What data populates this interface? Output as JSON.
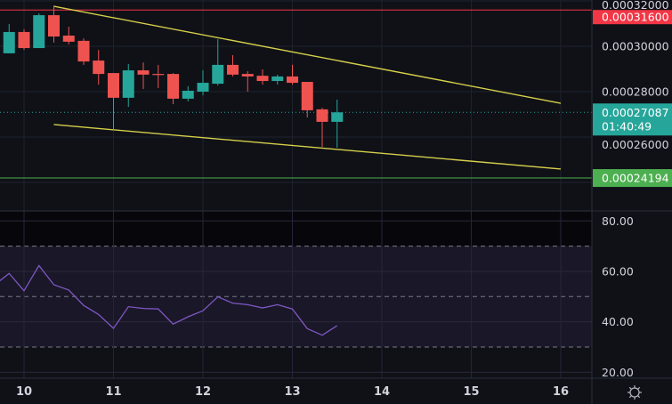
{
  "chart_data": [
    {
      "type": "candlestick",
      "title": "",
      "price_axis": {
        "ticks": [
          "0.00032000",
          "0.00030000",
          "0.00028000",
          "0.00026000"
        ],
        "ylim": [
          0.00023,
          0.000322
        ]
      },
      "time_axis": {
        "ticks": [
          "10",
          "11",
          "12",
          "13",
          "14",
          "15",
          "16"
        ]
      },
      "grid": true,
      "colors": {
        "up": "#26a69a",
        "down": "#ef5350",
        "trendline": "#d6cf4a",
        "resistance": "#f23645",
        "support": "#4caf50",
        "background": "#0f1117"
      },
      "candles": [
        {
          "t": "9 20:00",
          "o": 0.0002969,
          "h": 0.0003098,
          "l": 0.0002969,
          "c": 0.0003063
        },
        {
          "t": "10 00:00",
          "o": 0.0003063,
          "h": 0.0003075,
          "l": 0.0002984,
          "c": 0.0002992
        },
        {
          "t": "10 04:00",
          "o": 0.0002992,
          "h": 0.0003145,
          "l": 0.0002992,
          "c": 0.0003137
        },
        {
          "t": "10 08:00",
          "o": 0.0003137,
          "h": 0.000318,
          "l": 0.0003016,
          "c": 0.0003043
        },
        {
          "t": "10 12:00",
          "o": 0.0003047,
          "h": 0.0003086,
          "l": 0.0003008,
          "c": 0.000302
        },
        {
          "t": "10 16:00",
          "o": 0.0003024,
          "h": 0.0003035,
          "l": 0.0002918,
          "c": 0.0002933
        },
        {
          "t": "10 20:00",
          "o": 0.0002937,
          "h": 0.0002984,
          "l": 0.0002831,
          "c": 0.0002878
        },
        {
          "t": "11 00:00",
          "o": 0.0002882,
          "h": 0.0002882,
          "l": 0.0002631,
          "c": 0.0002773
        },
        {
          "t": "11 04:00",
          "o": 0.0002773,
          "h": 0.0002922,
          "l": 0.0002733,
          "c": 0.0002894
        },
        {
          "t": "11 08:00",
          "o": 0.0002894,
          "h": 0.0002929,
          "l": 0.0002812,
          "c": 0.0002875
        },
        {
          "t": "11 12:00",
          "o": 0.0002878,
          "h": 0.0002918,
          "l": 0.0002816,
          "c": 0.0002875
        },
        {
          "t": "11 16:00",
          "o": 0.0002878,
          "h": 0.0002882,
          "l": 0.0002745,
          "c": 0.0002769
        },
        {
          "t": "11 20:00",
          "o": 0.0002769,
          "h": 0.0002824,
          "l": 0.0002757,
          "c": 0.0002804
        },
        {
          "t": "12 00:00",
          "o": 0.00028,
          "h": 0.0002894,
          "l": 0.0002784,
          "c": 0.0002839
        },
        {
          "t": "12 04:00",
          "o": 0.0002835,
          "h": 0.0003031,
          "l": 0.0002827,
          "c": 0.0002918
        },
        {
          "t": "12 08:00",
          "o": 0.0002918,
          "h": 0.0002961,
          "l": 0.0002867,
          "c": 0.0002875
        },
        {
          "t": "12 12:00",
          "o": 0.0002878,
          "h": 0.000289,
          "l": 0.00028,
          "c": 0.0002867
        },
        {
          "t": "12 16:00",
          "o": 0.000287,
          "h": 0.0002898,
          "l": 0.0002831,
          "c": 0.0002847
        },
        {
          "t": "12 20:00",
          "o": 0.0002847,
          "h": 0.0002875,
          "l": 0.0002831,
          "c": 0.0002867
        },
        {
          "t": "13 00:00",
          "o": 0.0002867,
          "h": 0.0002918,
          "l": 0.0002831,
          "c": 0.0002839
        },
        {
          "t": "13 04:00",
          "o": 0.0002843,
          "h": 0.0002843,
          "l": 0.0002686,
          "c": 0.0002718
        },
        {
          "t": "13 08:00",
          "o": 0.0002722,
          "h": 0.0002729,
          "l": 0.0002557,
          "c": 0.0002667
        },
        {
          "t": "13 12:00",
          "o": 0.0002667,
          "h": 0.0002765,
          "l": 0.0002553,
          "c": 0.00027087
        }
      ],
      "trendlines": [
        {
          "from": {
            "t": "10 08:00",
            "p": 0.0003176
          },
          "to": {
            "t": "16 00:00",
            "p": 0.0002749
          }
        },
        {
          "from": {
            "t": "10 08:00",
            "p": 0.0002655
          },
          "to": {
            "t": "16 00:00",
            "p": 0.0002459
          }
        }
      ],
      "horizontal_lines": [
        {
          "price": 0.000316,
          "label": "0.00031600",
          "color": "#f23645"
        },
        {
          "price": 0.00024194,
          "label": "0.00024194",
          "color": "#4caf50"
        }
      ],
      "current_price": {
        "label": "0.00027087",
        "countdown": "01:40:49",
        "color": "#26a69a"
      }
    },
    {
      "type": "line",
      "title": "",
      "y_axis": {
        "ticks": [
          "80.00",
          "60.00",
          "40.00",
          "20.00"
        ],
        "ylim": [
          17,
          85
        ]
      },
      "bands": {
        "upper": 70,
        "middle": 50,
        "lower": 30
      },
      "color": "#7e57c2",
      "points": [
        {
          "t": "9 16:00",
          "v": 54.5
        },
        {
          "t": "9 20:00",
          "v": 59.2
        },
        {
          "t": "10 00:00",
          "v": 52.3
        },
        {
          "t": "10 04:00",
          "v": 62.3
        },
        {
          "t": "10 08:00",
          "v": 54.7
        },
        {
          "t": "10 12:00",
          "v": 52.6
        },
        {
          "t": "10 16:00",
          "v": 46.5
        },
        {
          "t": "10 20:00",
          "v": 42.9
        },
        {
          "t": "11 00:00",
          "v": 37.4
        },
        {
          "t": "11 04:00",
          "v": 46.0
        },
        {
          "t": "11 08:00",
          "v": 45.3
        },
        {
          "t": "11 12:00",
          "v": 45.1
        },
        {
          "t": "11 16:00",
          "v": 39.1
        },
        {
          "t": "11 20:00",
          "v": 42.0
        },
        {
          "t": "12 00:00",
          "v": 44.4
        },
        {
          "t": "12 04:00",
          "v": 49.9
        },
        {
          "t": "12 08:00",
          "v": 47.4
        },
        {
          "t": "12 12:00",
          "v": 46.8
        },
        {
          "t": "12 16:00",
          "v": 45.5
        },
        {
          "t": "12 20:00",
          "v": 46.8
        },
        {
          "t": "13 00:00",
          "v": 45.1
        },
        {
          "t": "13 04:00",
          "v": 37.3
        },
        {
          "t": "13 08:00",
          "v": 34.7
        },
        {
          "t": "13 12:00",
          "v": 38.5
        }
      ]
    }
  ],
  "settings_icon": "gear-icon"
}
